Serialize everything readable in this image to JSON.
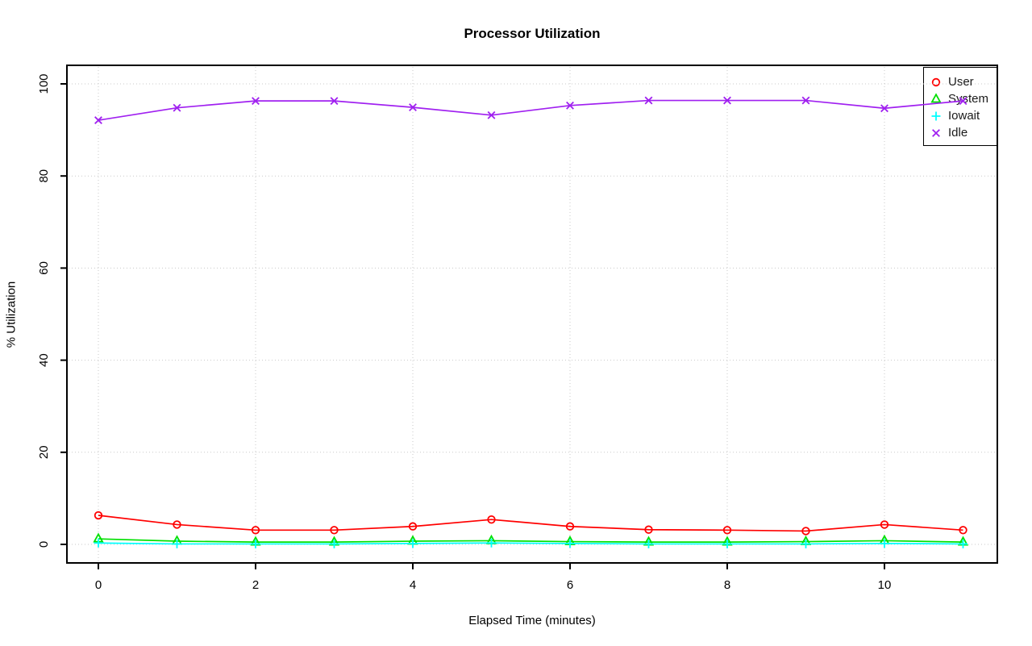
{
  "chart_data": {
    "type": "line",
    "title": "Processor Utilization",
    "xlabel": "Elapsed Time (minutes)",
    "ylabel": "% Utilization",
    "xlim": [
      0,
      11
    ],
    "ylim": [
      0,
      100
    ],
    "x_ticks": [
      0,
      2,
      4,
      6,
      8,
      10
    ],
    "y_ticks": [
      0,
      20,
      40,
      60,
      80,
      100
    ],
    "grid": "dotted gray, both axes at tick positions",
    "legend_position": "top-right",
    "x": [
      0,
      1,
      2,
      3,
      4,
      5,
      6,
      7,
      8,
      9,
      10,
      11
    ],
    "series": [
      {
        "name": "User",
        "color": "#FF0000",
        "marker": "circle",
        "values": [
          6.3,
          4.3,
          3.1,
          3.1,
          3.9,
          5.4,
          3.9,
          3.2,
          3.1,
          2.9,
          4.3,
          3.1
        ]
      },
      {
        "name": "System",
        "color": "#00E000",
        "marker": "triangle",
        "values": [
          1.2,
          0.7,
          0.5,
          0.5,
          0.7,
          0.8,
          0.6,
          0.5,
          0.5,
          0.6,
          0.8,
          0.5
        ]
      },
      {
        "name": "Iowait",
        "color": "#00FFFF",
        "marker": "plus",
        "values": [
          0.3,
          0.1,
          0.1,
          0.1,
          0.2,
          0.3,
          0.2,
          0.1,
          0.1,
          0.1,
          0.2,
          0.1
        ]
      },
      {
        "name": "Idle",
        "color": "#A020F0",
        "marker": "x",
        "values": [
          92.1,
          94.8,
          96.3,
          96.3,
          94.9,
          93.2,
          95.3,
          96.4,
          96.4,
          96.4,
          94.7,
          96.3
        ]
      }
    ]
  }
}
